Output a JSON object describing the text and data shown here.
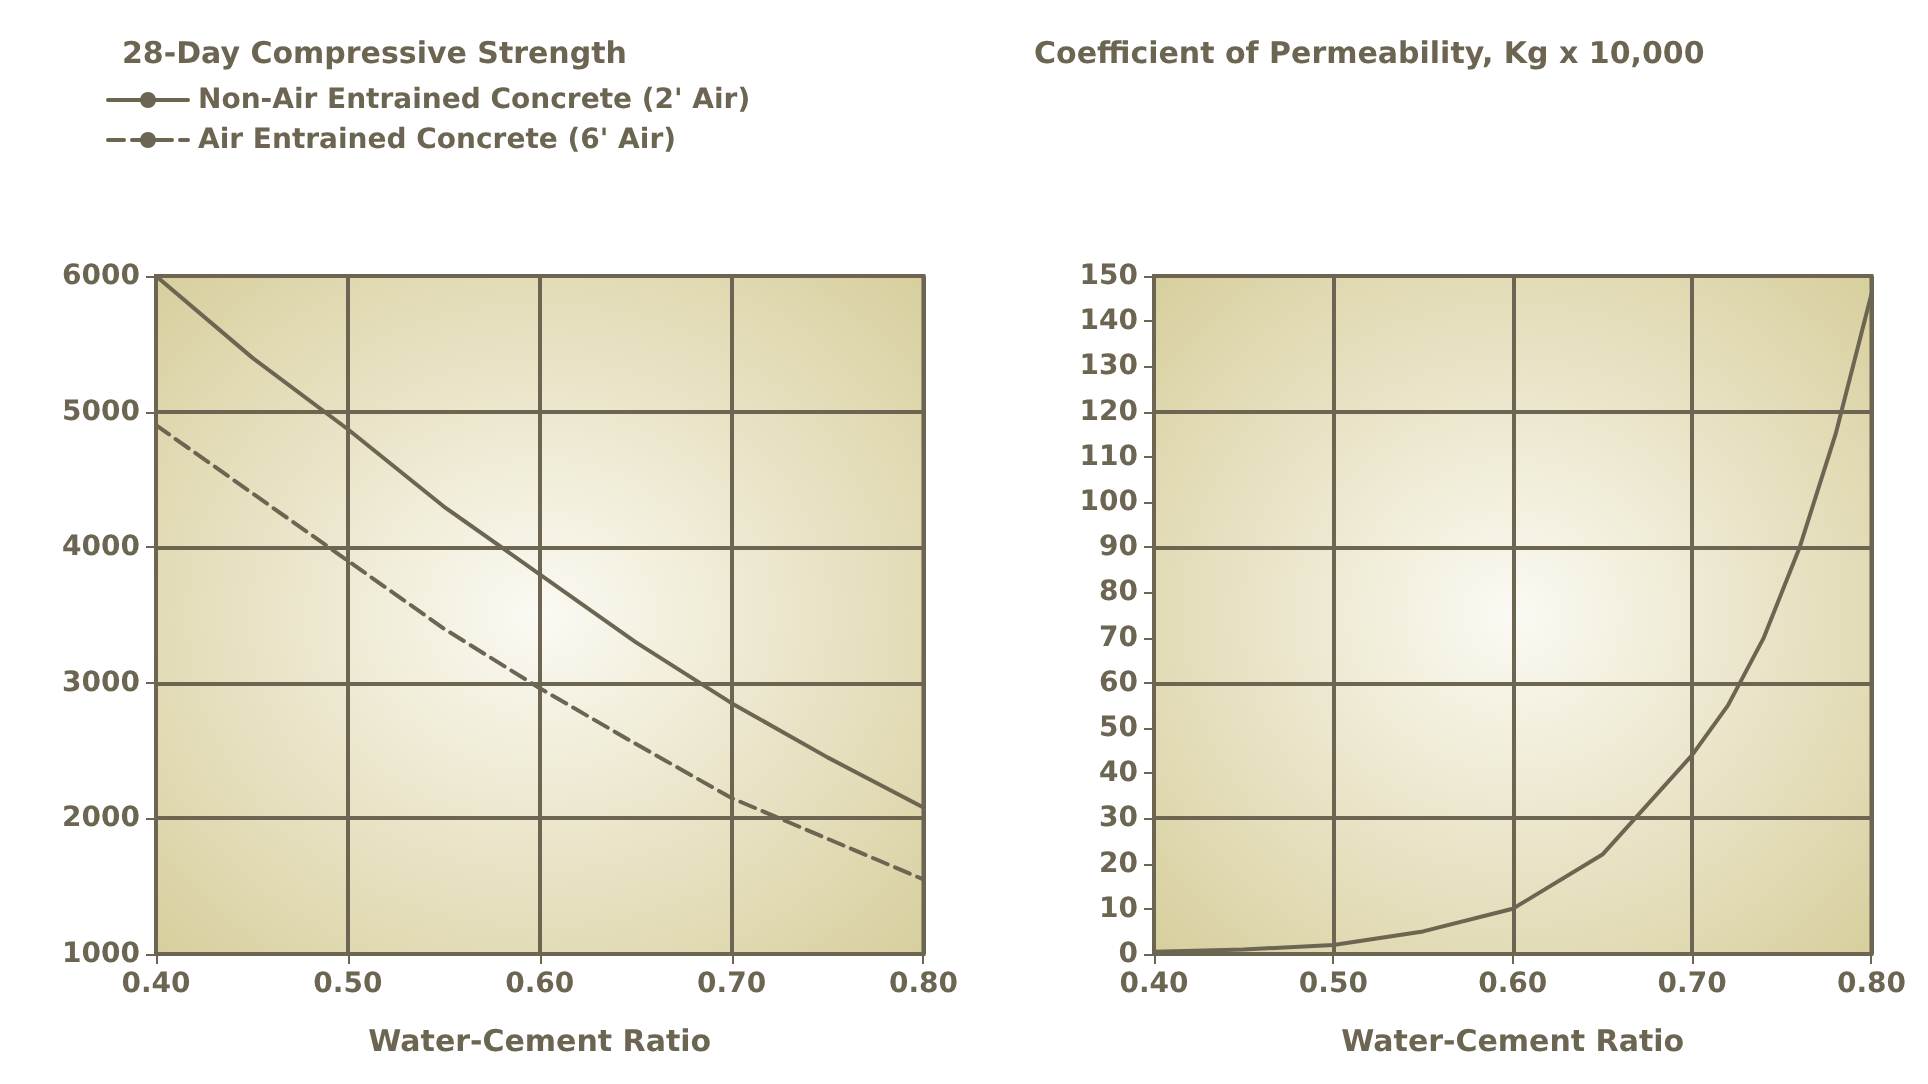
{
  "chart_data": [
    {
      "type": "line",
      "title": "28-Day Compressive Strength",
      "xlabel": "Water-Cement Ratio",
      "legend": "top left",
      "grid": true,
      "marker": "none",
      "x": [
        0.4,
        0.45,
        0.5,
        0.55,
        0.6,
        0.65,
        0.7,
        0.75,
        0.8
      ],
      "series": [
        {
          "name": "Non-Air Entrained Concrete (2' Air)",
          "color": "#6b6552",
          "line_style": "solid",
          "values": [
            6000,
            5400,
            4870,
            4300,
            3800,
            3300,
            2850,
            2450,
            2080
          ]
        },
        {
          "name": "Air Entrained Concrete (6' Air)",
          "color": "#6b6552",
          "line_style": "dashed",
          "values": [
            4900,
            4400,
            3900,
            3400,
            2960,
            2550,
            2150,
            1850,
            1550
          ]
        }
      ],
      "xlim": [
        0.4,
        0.8
      ],
      "xticks": [
        {
          "value": 0.4,
          "label": "0.40"
        },
        {
          "value": 0.5,
          "label": "0.50"
        },
        {
          "value": 0.6,
          "label": "0.60"
        },
        {
          "value": 0.7,
          "label": "0.70"
        },
        {
          "value": 0.8,
          "label": "0.80"
        }
      ],
      "ylim": [
        1000,
        6000
      ],
      "yticks": [
        1000,
        2000,
        3000,
        4000,
        5000,
        6000
      ]
    },
    {
      "type": "line",
      "title": "Coefficient of Permeability, Kg x 10,000",
      "xlabel": "Water-Cement Ratio",
      "grid": "x",
      "marker": "none",
      "line_style": "solid",
      "x": [
        0.4,
        0.45,
        0.5,
        0.55,
        0.6,
        0.65,
        0.7,
        0.72,
        0.74,
        0.76,
        0.78,
        0.8
      ],
      "series": [
        {
          "color": "#6b6552",
          "values": [
            0.5,
            1,
            2,
            5,
            10,
            22,
            44,
            55,
            70,
            90,
            115,
            146
          ]
        }
      ],
      "xlim": [
        0.4,
        0.8
      ],
      "xticks": [
        {
          "value": 0.4,
          "label": "0.40"
        },
        {
          "value": 0.5,
          "label": "0.50"
        },
        {
          "value": 0.6,
          "label": "0.60"
        },
        {
          "value": 0.7,
          "label": "0.70"
        },
        {
          "value": 0.8,
          "label": "0.80"
        }
      ],
      "ylim": [
        0,
        150
      ],
      "yticks": [
        0,
        10,
        20,
        30,
        40,
        50,
        60,
        70,
        80,
        90,
        100,
        110,
        120,
        130,
        140,
        150
      ],
      "ref_lines": [
        {
          "axis": "y",
          "value": 30,
          "label": null,
          "color": "#6b6552"
        },
        {
          "axis": "y",
          "value": 60,
          "label": null,
          "color": "#6b6552"
        },
        {
          "axis": "y",
          "value": 90,
          "label": null,
          "color": "#6b6552"
        },
        {
          "axis": "y",
          "value": 120,
          "label": null,
          "color": "#6b6552"
        }
      ]
    }
  ]
}
